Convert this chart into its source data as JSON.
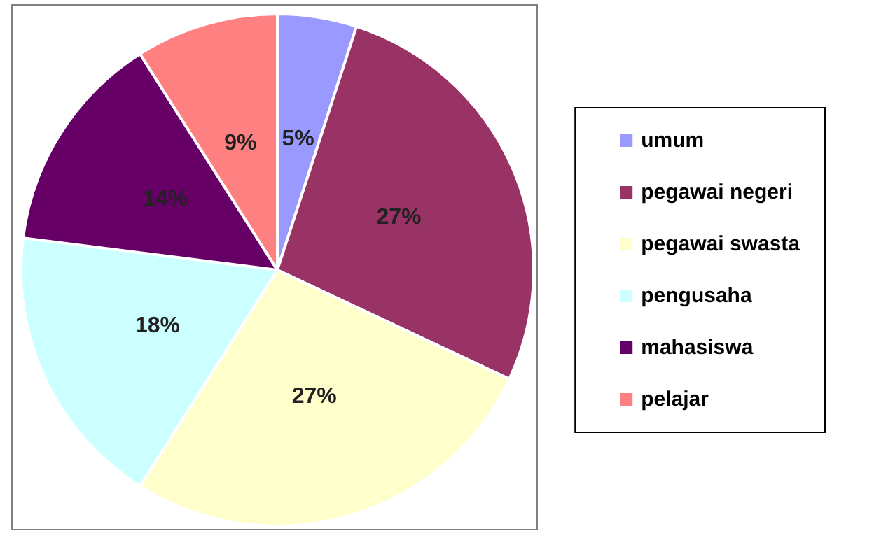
{
  "chart_data": {
    "type": "pie",
    "categories": [
      "umum",
      "pegawai negeri",
      "pegawai swasta",
      "pengusaha",
      "mahasiswa",
      "pelajar"
    ],
    "values": [
      5,
      27,
      27,
      18,
      14,
      9
    ],
    "colors": [
      "#9999ff",
      "#993366",
      "#ffffcc",
      "#ccffff",
      "#660066",
      "#ff8080"
    ],
    "value_labels": [
      "5%",
      "27%",
      "27%",
      "18%",
      "14%",
      "9%"
    ],
    "legend": "right"
  }
}
